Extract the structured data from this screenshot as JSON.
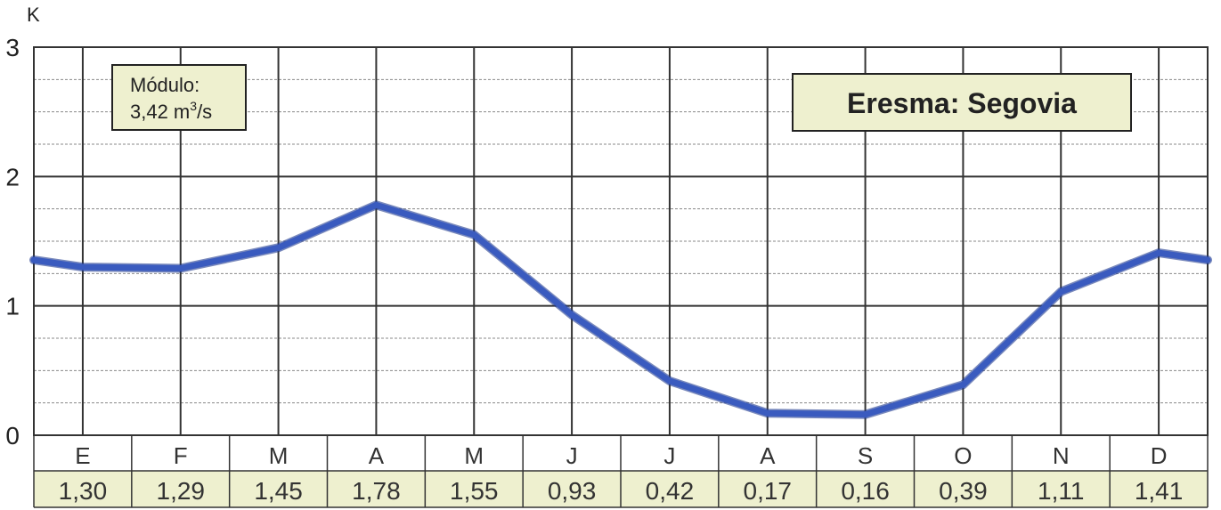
{
  "chart_data": {
    "type": "line",
    "title": "Eresma: Segovia",
    "y_axis_label": "K",
    "ylim": [
      0,
      3
    ],
    "y_ticks": [
      "0",
      "1",
      "2",
      "3"
    ],
    "categories": [
      "E",
      "F",
      "M",
      "A",
      "M",
      "J",
      "J",
      "A",
      "S",
      "O",
      "N",
      "D"
    ],
    "value_labels": [
      "1,30",
      "1,29",
      "1,45",
      "1,78",
      "1,55",
      "0,93",
      "0,42",
      "0,17",
      "0,16",
      "0,39",
      "1,11",
      "1,41"
    ],
    "series": [
      {
        "values": [
          1.3,
          1.29,
          1.45,
          1.78,
          1.55,
          0.93,
          0.42,
          0.17,
          0.16,
          0.39,
          1.11,
          1.41
        ]
      }
    ],
    "modulo": {
      "label": "Módulo:",
      "value": "3,42 m",
      "superscript": "3",
      "unit_suffix": "/s"
    },
    "grid": true,
    "colors": {
      "line": "#3a5bbf",
      "line_shadow": "#1f3a8f",
      "label_box_fill": "#eef0cf",
      "label_box_stroke": "#222222",
      "grid_major": "#333333",
      "grid_minor": "#8a8a8a"
    }
  }
}
